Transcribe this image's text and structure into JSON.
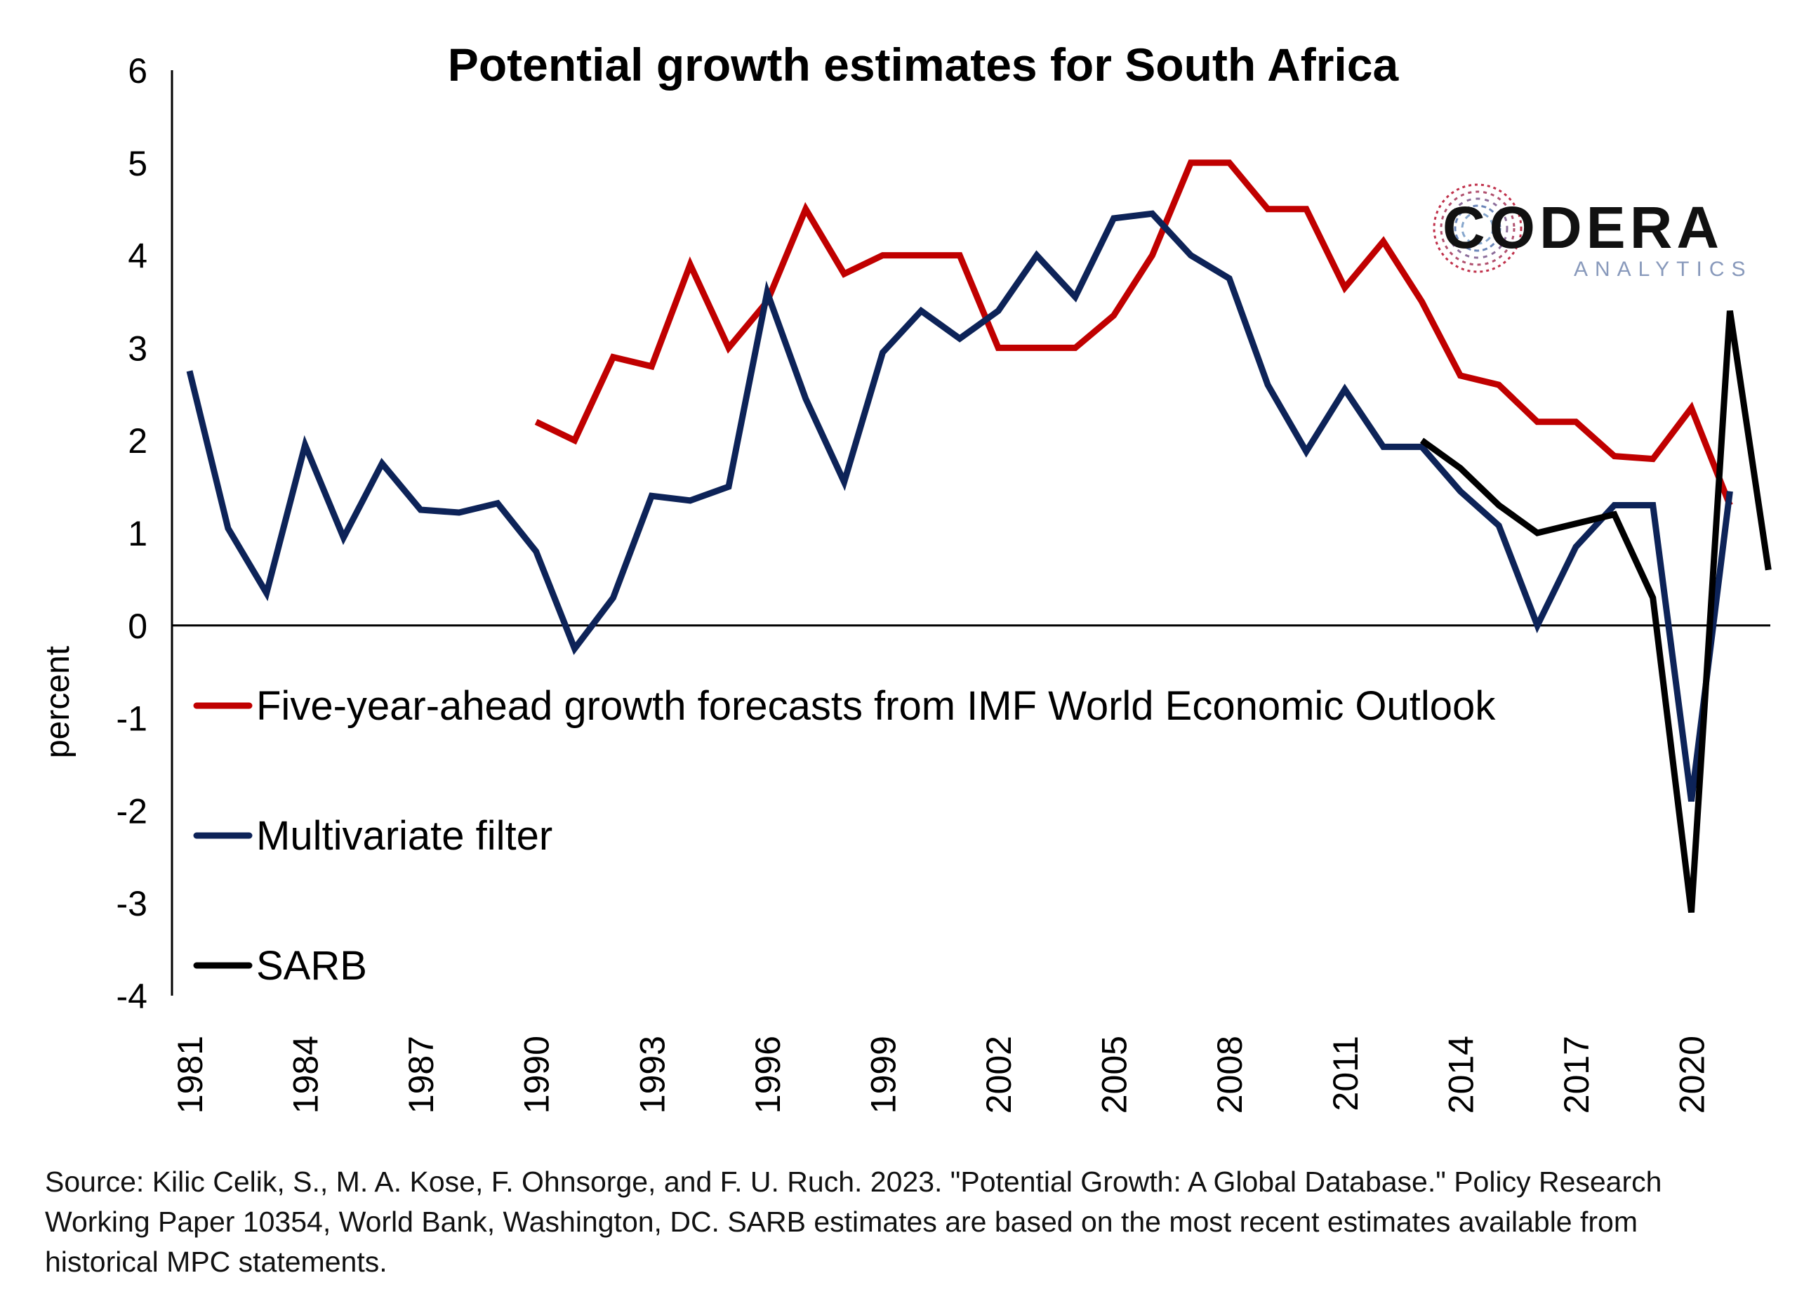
{
  "chart_data": {
    "type": "line",
    "title": "Potential growth estimates for South Africa",
    "ylabel": "percent",
    "xlabel": "",
    "ylim": [
      -4,
      6
    ],
    "yticks": [
      6,
      5,
      4,
      3,
      2,
      1,
      0,
      -1,
      -2,
      -3,
      -4
    ],
    "xlim": [
      1981,
      2022
    ],
    "xticks": [
      1981,
      1984,
      1987,
      1990,
      1993,
      1996,
      1999,
      2002,
      2005,
      2008,
      2011,
      2014,
      2017,
      2020
    ],
    "grid": false,
    "legend_position": "left",
    "series": [
      {
        "name": "Five-year-ahead growth forecasts from IMF World Economic Outlook",
        "color": "#c00000",
        "x": [
          1990,
          1991,
          1992,
          1993,
          1994,
          1995,
          1996,
          1997,
          1998,
          1999,
          2000,
          2001,
          2002,
          2003,
          2004,
          2005,
          2006,
          2007,
          2008,
          2009,
          2010,
          2011,
          2012,
          2013,
          2014,
          2015,
          2016,
          2017,
          2018,
          2019,
          2020,
          2021
        ],
        "y": [
          2.2,
          2.0,
          2.9,
          2.8,
          3.9,
          3.0,
          3.5,
          4.5,
          3.8,
          4.0,
          4.0,
          4.0,
          3.0,
          3.0,
          3.0,
          3.35,
          4.0,
          5.0,
          5.0,
          4.5,
          4.5,
          3.65,
          4.15,
          3.5,
          2.7,
          2.6,
          2.2,
          2.2,
          1.83,
          1.8,
          2.35,
          1.3
        ]
      },
      {
        "name": "Multivariate filter",
        "color": "#0d2358",
        "x": [
          1981,
          1982,
          1983,
          1984,
          1985,
          1986,
          1987,
          1988,
          1989,
          1990,
          1991,
          1992,
          1993,
          1994,
          1995,
          1996,
          1997,
          1998,
          1999,
          2000,
          2001,
          2002,
          2003,
          2004,
          2005,
          2006,
          2007,
          2008,
          2009,
          2010,
          2011,
          2012,
          2013,
          2014,
          2015,
          2016,
          2017,
          2018,
          2019,
          2020,
          2021
        ],
        "y": [
          2.75,
          1.05,
          0.35,
          1.95,
          0.95,
          1.75,
          1.25,
          1.22,
          1.32,
          0.8,
          -0.25,
          0.3,
          1.4,
          1.35,
          1.5,
          3.6,
          2.45,
          1.55,
          2.95,
          3.4,
          3.1,
          3.4,
          4.0,
          3.55,
          4.4,
          4.45,
          4.0,
          3.75,
          2.6,
          1.88,
          2.55,
          1.93,
          1.93,
          1.45,
          1.08,
          0.0,
          0.85,
          1.3,
          1.3,
          -1.9,
          1.45
        ]
      },
      {
        "name": "SARB",
        "color": "#000000",
        "x": [
          2013,
          2014,
          2015,
          2016,
          2017,
          2018,
          2019,
          2020,
          2021,
          2022
        ],
        "y": [
          2.0,
          1.7,
          1.3,
          1.0,
          1.1,
          1.2,
          0.3,
          -3.1,
          3.4,
          0.6
        ]
      }
    ]
  },
  "source_note": "Source: Kilic Celik, S., M. A. Kose, F. Ohnsorge, and F. U. Ruch. 2023. \"Potential Growth: A Global Database.\" Policy Research Working Paper 10354, World Bank, Washington, DC. SARB estimates are based on the most recent estimates available from historical MPC statements.",
  "logo": {
    "name": "CODERA",
    "tagline": "ANALYTICS",
    "name_color": "#111111",
    "tagline_color": "#8899bb"
  }
}
